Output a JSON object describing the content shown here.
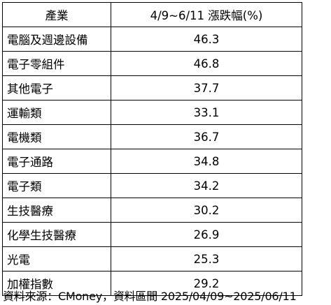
{
  "table": {
    "headers": {
      "industry": "產業",
      "change": "4/9~6/11 漲跌幅(%)"
    },
    "rows": [
      {
        "industry": "電腦及週邊設備",
        "change": "46.3"
      },
      {
        "industry": "電子零組件",
        "change": "46.8"
      },
      {
        "industry": "其他電子",
        "change": "37.7"
      },
      {
        "industry": "運輸類",
        "change": "33.1"
      },
      {
        "industry": "電機類",
        "change": "36.7"
      },
      {
        "industry": "電子通路",
        "change": "34.8"
      },
      {
        "industry": "電子類",
        "change": "34.2"
      },
      {
        "industry": "生技醫療",
        "change": "30.2"
      },
      {
        "industry": "化學生技醫療",
        "change": "26.9"
      },
      {
        "industry": "光電",
        "change": "25.3"
      },
      {
        "industry": "加權指數",
        "change": "29.2"
      }
    ]
  },
  "source_note": "資料來源：CMoney，資料區間 2025/04/09~2025/06/11"
}
